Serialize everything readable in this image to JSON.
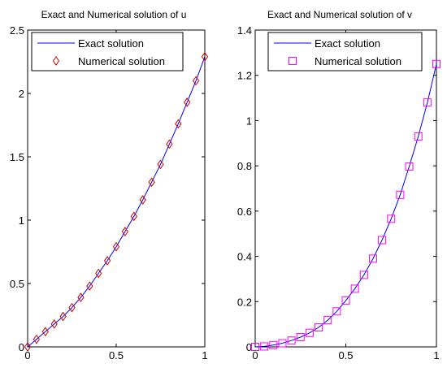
{
  "chart_data": [
    {
      "type": "line",
      "title": "Exact and Numerical solution of u",
      "xlabel": "",
      "ylabel": "",
      "xlim": [
        0,
        1
      ],
      "ylim": [
        0,
        2.5
      ],
      "xticks": [
        "0",
        "0.5",
        "1"
      ],
      "yticks": [
        "0",
        "0.5",
        "1",
        "1.5",
        "2",
        "2.5"
      ],
      "grid": false,
      "legend_position": "top-left",
      "x": [
        0,
        0.05,
        0.1,
        0.15,
        0.2,
        0.25,
        0.3,
        0.35,
        0.4,
        0.45,
        0.5,
        0.55,
        0.6,
        0.65,
        0.7,
        0.75,
        0.8,
        0.85,
        0.9,
        0.95,
        1.0
      ],
      "series": [
        {
          "name": "Exact solution",
          "style": "line",
          "color": "#0000ff",
          "values": [
            0,
            0.06,
            0.12,
            0.18,
            0.24,
            0.31,
            0.39,
            0.48,
            0.58,
            0.68,
            0.79,
            0.91,
            1.03,
            1.16,
            1.3,
            1.44,
            1.6,
            1.76,
            1.93,
            2.1,
            2.29
          ]
        },
        {
          "name": "Numerical solution",
          "style": "marker",
          "marker": "diamond",
          "color": "#cc0000",
          "values": [
            0,
            0.06,
            0.12,
            0.18,
            0.24,
            0.31,
            0.39,
            0.48,
            0.58,
            0.68,
            0.79,
            0.91,
            1.03,
            1.16,
            1.3,
            1.44,
            1.6,
            1.76,
            1.93,
            2.1,
            2.29
          ]
        }
      ]
    },
    {
      "type": "line",
      "title": "Exact and Numerical solution of v",
      "xlabel": "",
      "ylabel": "",
      "xlim": [
        0,
        1
      ],
      "ylim": [
        0,
        1.4
      ],
      "xticks": [
        "0",
        "0.5",
        "1"
      ],
      "yticks": [
        "0",
        "0.2",
        "0.4",
        "0.6",
        "0.8",
        "1",
        "1.2",
        "1.4"
      ],
      "grid": false,
      "legend_position": "top-left",
      "x": [
        0,
        0.05,
        0.1,
        0.15,
        0.2,
        0.25,
        0.3,
        0.35,
        0.4,
        0.45,
        0.5,
        0.55,
        0.6,
        0.65,
        0.7,
        0.75,
        0.8,
        0.85,
        0.9,
        0.95,
        1.0
      ],
      "series": [
        {
          "name": "Exact solution",
          "style": "line",
          "color": "#0000ff",
          "values": [
            0,
            0.002,
            0.008,
            0.016,
            0.028,
            0.043,
            0.062,
            0.086,
            0.118,
            0.157,
            0.205,
            0.257,
            0.318,
            0.39,
            0.472,
            0.566,
            0.672,
            0.797,
            0.93,
            1.08,
            1.25
          ]
        },
        {
          "name": "Numerical solution",
          "style": "marker",
          "marker": "square",
          "color": "#ff00ff",
          "values": [
            0,
            0.002,
            0.008,
            0.016,
            0.028,
            0.043,
            0.062,
            0.086,
            0.118,
            0.157,
            0.205,
            0.257,
            0.318,
            0.39,
            0.472,
            0.566,
            0.672,
            0.797,
            0.93,
            1.08,
            1.25
          ]
        }
      ]
    }
  ]
}
